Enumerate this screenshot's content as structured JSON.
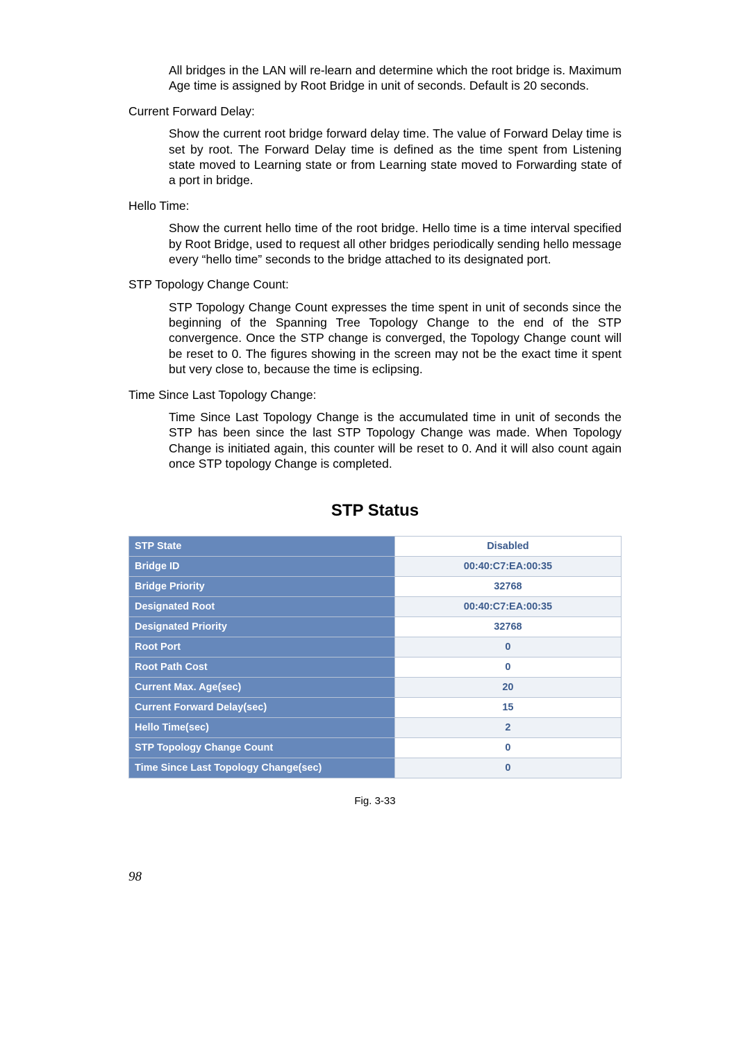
{
  "para_intro": "All bridges in the LAN will re-learn and determine which the root bridge is. Maximum Age time is assigned by Root Bridge in unit of seconds. Default is 20 seconds.",
  "label_cfd": "Current Forward Delay:",
  "para_cfd": "Show the current root bridge forward delay time. The value of Forward Delay time is set by root. The Forward Delay time is defined as the time spent from Listening state moved to Learning state or from Learning state moved to Forwarding state of a port in bridge.",
  "label_hello": "Hello Time:",
  "para_hello": "Show the current hello time of the root bridge. Hello time is a time interval specified by Root Bridge, used to request all other bridges periodically sending hello message every “hello time” seconds to the bridge attached to its designated port.",
  "label_tcc": "STP Topology Change Count:",
  "para_tcc": "STP Topology Change Count expresses the time spent in unit of seconds since the beginning of the Spanning Tree Topology Change to the end of the STP convergence. Once the STP change is converged, the Topology Change count will be reset to 0. The figures showing in the screen may not be the exact time it spent but very close to, because the time is eclipsing.",
  "label_tslc": "Time Since Last Topology Change:",
  "para_tslc": "Time Since Last Topology Change is the accumulated time in unit of seconds the STP has been since the last STP Topology Change was made. When Topology Change is initiated again, this counter will be reset to 0. And it will also count again once STP topology Change is completed.",
  "table_title": "STP Status",
  "rows": [
    {
      "k": "STP State",
      "v": "Disabled",
      "alt": false
    },
    {
      "k": "Bridge ID",
      "v": "00:40:C7:EA:00:35",
      "alt": true
    },
    {
      "k": "Bridge Priority",
      "v": "32768",
      "alt": false
    },
    {
      "k": "Designated Root",
      "v": "00:40:C7:EA:00:35",
      "alt": true
    },
    {
      "k": "Designated Priority",
      "v": "32768",
      "alt": false
    },
    {
      "k": "Root Port",
      "v": "0",
      "alt": true
    },
    {
      "k": "Root Path Cost",
      "v": "0",
      "alt": false
    },
    {
      "k": "Current Max. Age(sec)",
      "v": "20",
      "alt": true
    },
    {
      "k": "Current Forward Delay(sec)",
      "v": "15",
      "alt": false
    },
    {
      "k": "Hello Time(sec)",
      "v": "2",
      "alt": true
    },
    {
      "k": "STP Topology Change Count",
      "v": "0",
      "alt": false
    },
    {
      "k": "Time Since Last Topology Change(sec)",
      "v": "0",
      "alt": true
    }
  ],
  "caption": "Fig. 3-33",
  "page_number": "98",
  "colors": {
    "header_bg": "#6688bb",
    "header_fg": "#ffffff",
    "value_fg": "#3a5a8c",
    "alt_bg": "#eef2f7",
    "border": "#b8c4d6"
  }
}
